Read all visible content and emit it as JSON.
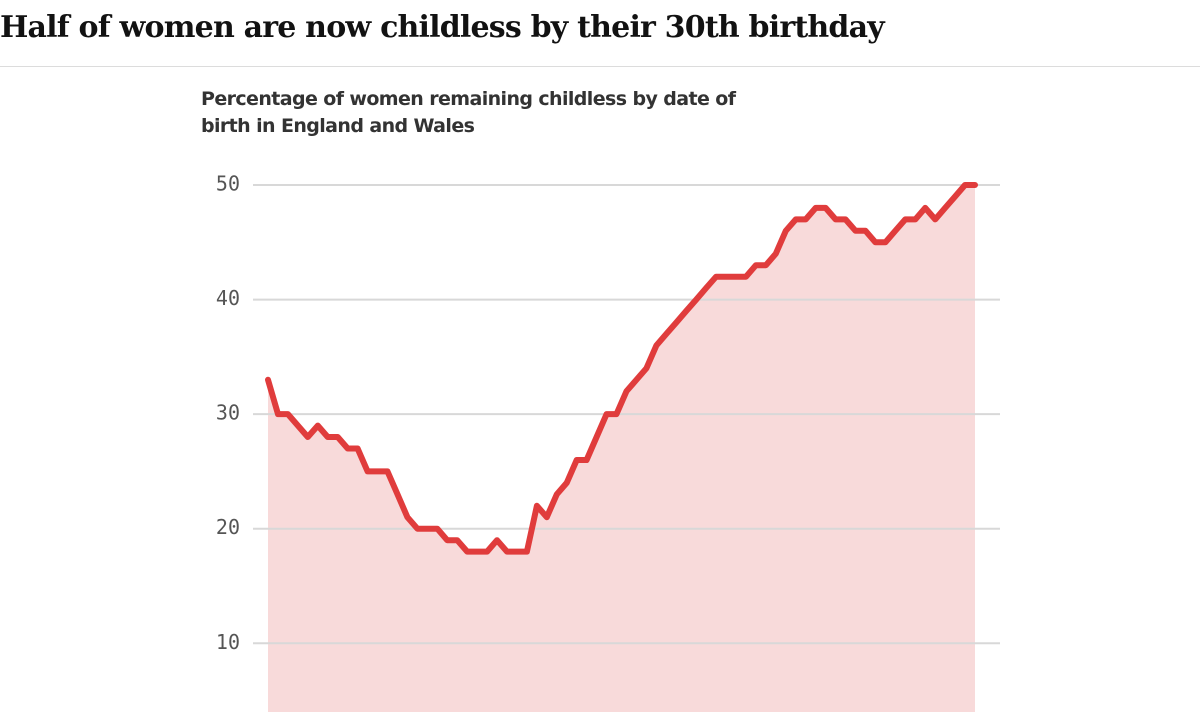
{
  "chart_data": {
    "type": "line",
    "title": "Half of women are now childless by their 30th birthday",
    "subtitle": "Percentage of women remaining childless by date of birth in England and Wales",
    "values": [
      33,
      30,
      30,
      29,
      28,
      29,
      28,
      28,
      27,
      27,
      25,
      25,
      25,
      23,
      21,
      20,
      20,
      20,
      19,
      19,
      18,
      18,
      18,
      19,
      18,
      18,
      18,
      22,
      21,
      23,
      24,
      26,
      26,
      28,
      30,
      30,
      32,
      33,
      34,
      36,
      37,
      38,
      39,
      40,
      41,
      42,
      42,
      42,
      42,
      43,
      43,
      44,
      46,
      47,
      47,
      48,
      48,
      47,
      47,
      46,
      46,
      45,
      45,
      46,
      47,
      47,
      48,
      47,
      48,
      49,
      50,
      50
    ],
    "color": "#e03c3c",
    "fill": "#f8dada",
    "ylim": [
      4,
      50
    ],
    "yticks": [
      10,
      20,
      30,
      40,
      50
    ],
    "grid": true
  }
}
